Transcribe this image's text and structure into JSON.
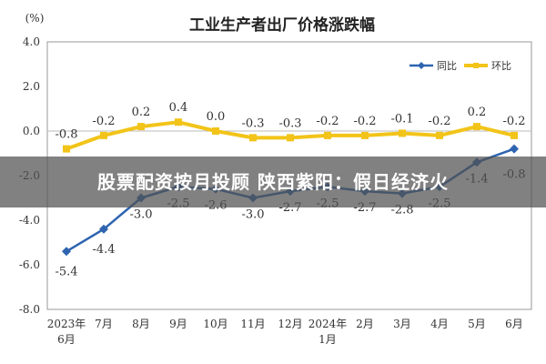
{
  "chart_data": {
    "type": "line",
    "title": "工业生产者出厂价格涨跌幅",
    "ylabel": "(%)",
    "ylim": [
      -8.0,
      4.0
    ],
    "yticks": [
      "4.0",
      "2.0",
      "0.0",
      "-2.0",
      "-4.0",
      "-6.0",
      "-8.0"
    ],
    "ytick_values": [
      4,
      2,
      0,
      -2,
      -4,
      -6,
      -8
    ],
    "categories": [
      [
        "2023年",
        "6月"
      ],
      [
        "7月"
      ],
      [
        "8月"
      ],
      [
        "9月"
      ],
      [
        "10月"
      ],
      [
        "11月"
      ],
      [
        "12月"
      ],
      [
        "2024年",
        "1月"
      ],
      [
        "2月"
      ],
      [
        "3月"
      ],
      [
        "4月"
      ],
      [
        "5月"
      ],
      [
        "6月"
      ]
    ],
    "legend_position": "top-right",
    "series": [
      {
        "name": "同比",
        "color": "#2e64b0",
        "values": [
          -5.4,
          -4.4,
          -3.0,
          -2.5,
          -2.6,
          -3.0,
          -2.7,
          -2.5,
          -2.7,
          -2.8,
          -2.5,
          -1.4,
          -0.8
        ],
        "labels": [
          "-5.4",
          "-4.4",
          "-3.0",
          "-2.5",
          "-2.6",
          "-3.0",
          "-2.7",
          "-2.5",
          "-2.7",
          "-2.8",
          "-2.5",
          "-1.4",
          "-0.8"
        ]
      },
      {
        "name": "环比",
        "color": "#f2c419",
        "values": [
          -0.8,
          -0.2,
          0.2,
          0.4,
          0.0,
          -0.3,
          -0.3,
          -0.2,
          -0.2,
          -0.1,
          -0.2,
          0.2,
          -0.2
        ],
        "labels": [
          "-0.8",
          "-0.2",
          "0.2",
          "0.4",
          "0.0",
          "-0.3",
          "-0.3",
          "-0.2",
          "-0.2",
          "-0.1",
          "-0.2",
          "0.2",
          "-0.2"
        ]
      }
    ],
    "grid": false
  },
  "banner": {
    "text": "股票配资按月投顾 陕西紫阳：假日经济火"
  }
}
